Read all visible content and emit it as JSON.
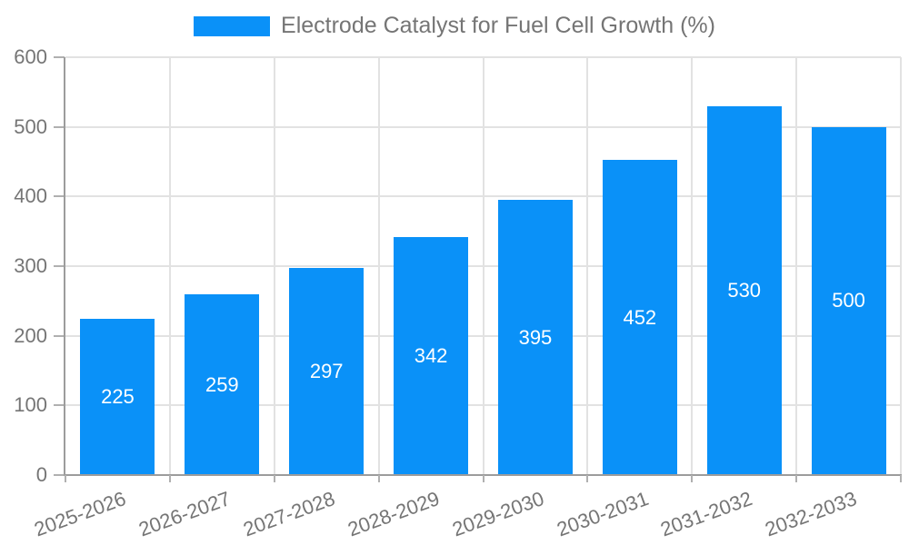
{
  "chart_data": {
    "type": "bar",
    "title": "Electrode Catalyst for Fuel Cell Growth (%)",
    "categories": [
      "2025-2026",
      "2026-2027",
      "2027-2028",
      "2028-2029",
      "2029-2030",
      "2030-2031",
      "2031-2032",
      "2032-2033"
    ],
    "values": [
      225,
      259,
      297,
      342,
      395,
      452,
      530,
      500
    ],
    "xlabel": "",
    "ylabel": "",
    "ylim": [
      0,
      600
    ],
    "yticks": [
      0,
      100,
      200,
      300,
      400,
      500,
      600
    ],
    "grid": true,
    "legend_position": "top",
    "bar_color": "#0a91f8",
    "bar_value_label_color": "#ffffff",
    "axis_color": "#9c9c9c",
    "grid_color": "#e2e2e2",
    "text_color": "#757575"
  }
}
